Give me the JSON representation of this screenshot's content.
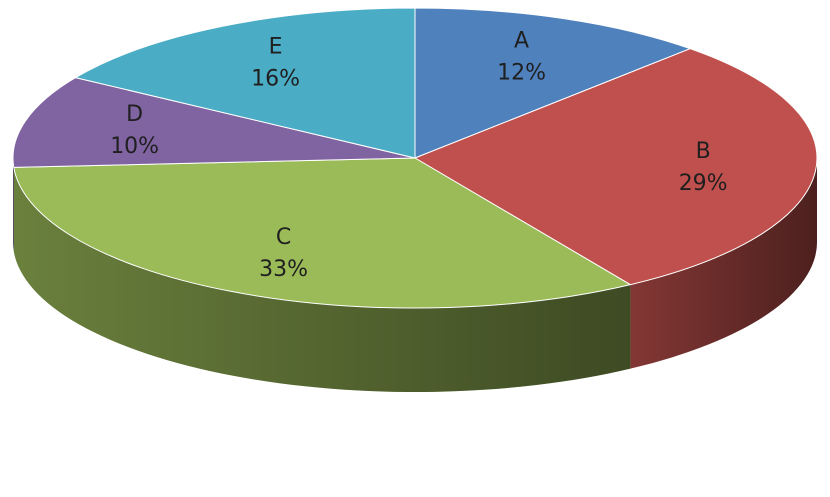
{
  "chart_data": {
    "type": "pie",
    "style": "3d",
    "categories": [
      "A",
      "B",
      "C",
      "D",
      "E"
    ],
    "values": [
      12,
      29,
      33,
      10,
      16
    ],
    "value_labels": [
      "12%",
      "29%",
      "33%",
      "10%",
      "16%"
    ],
    "colors": [
      "#4f81bd",
      "#c0504d",
      "#9bbb59",
      "#8064a2",
      "#4bacc6"
    ],
    "legend": "none",
    "title": ""
  }
}
